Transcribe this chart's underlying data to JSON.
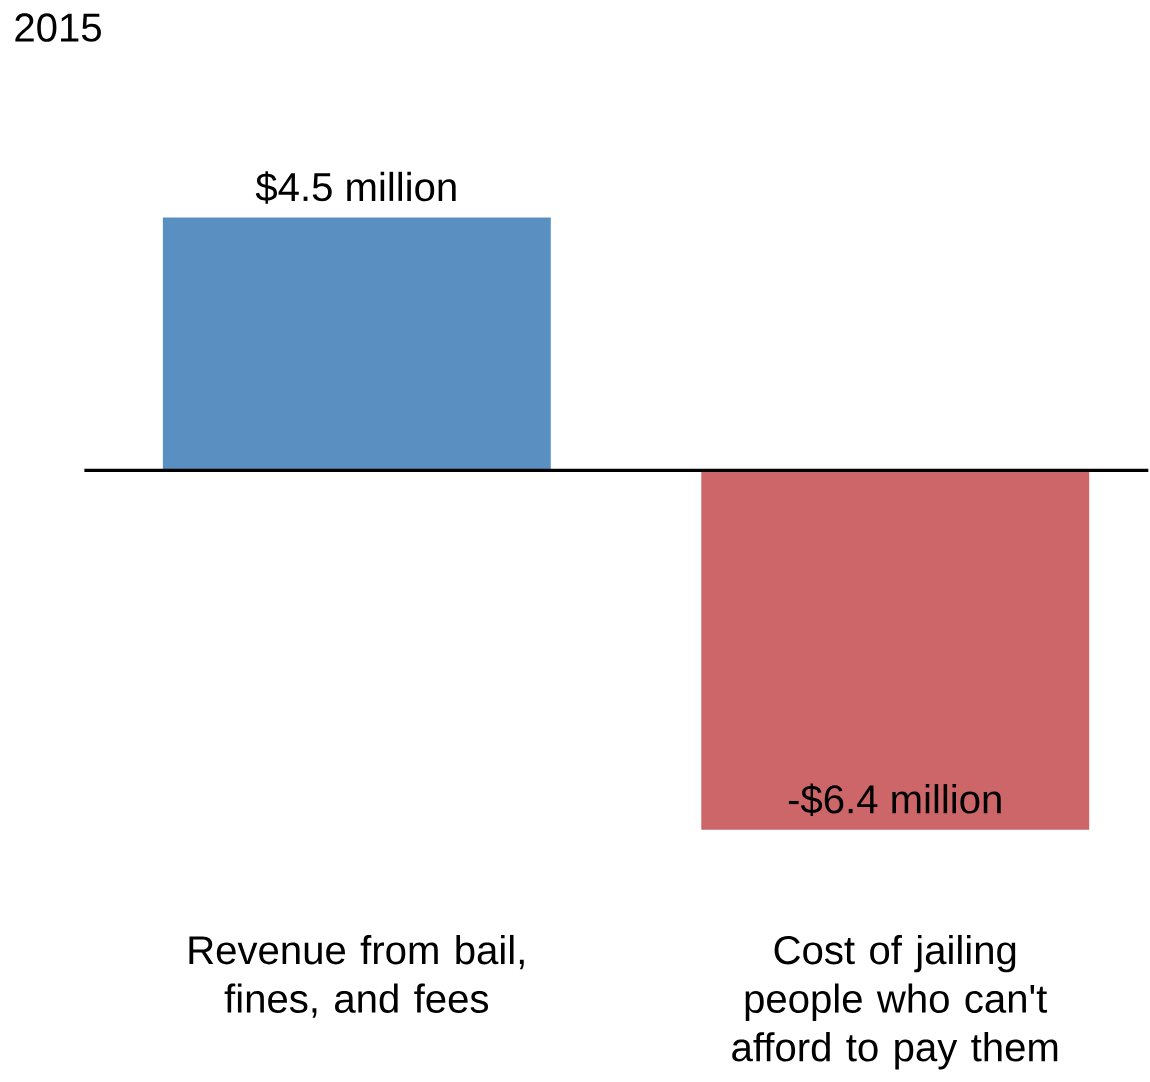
{
  "chart_data": {
    "type": "bar",
    "title": "2015",
    "categories": [
      "Revenue from bail, fines, and fees",
      "Cost of jailing people who can't afford to pay them"
    ],
    "values": [
      4.5,
      -6.4
    ],
    "colors": [
      "#5a8fc1",
      "#cc6669"
    ],
    "value_labels": [
      "$4.5 million",
      "-$6.4 million"
    ]
  }
}
